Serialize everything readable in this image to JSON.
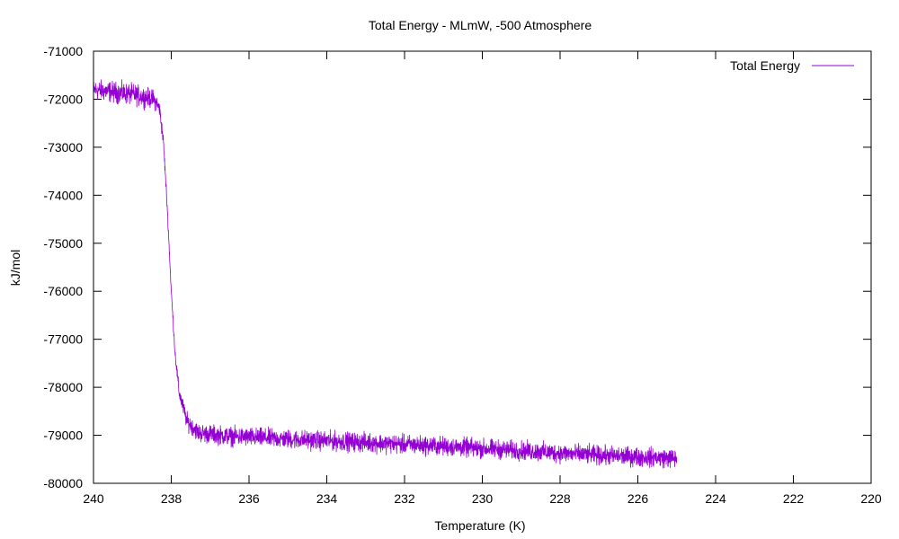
{
  "chart_data": {
    "type": "line",
    "title": "Total Energy - MLmW, -500 Atmosphere",
    "xlabel": "Temperature (K)",
    "ylabel": "kJ/mol",
    "xlim": [
      240,
      220
    ],
    "ylim": [
      -80000,
      -71000
    ],
    "x_reversed": true,
    "xticks": [
      "240",
      "238",
      "236",
      "234",
      "232",
      "230",
      "228",
      "226",
      "224",
      "222",
      "220"
    ],
    "yticks": [
      "-71000",
      "-72000",
      "-73000",
      "-74000",
      "-75000",
      "-76000",
      "-77000",
      "-78000",
      "-79000",
      "-80000"
    ],
    "grid": false,
    "legend_position": "top-right",
    "series": [
      {
        "name": "Total Energy",
        "color": "#9400d3",
        "band_profile": [
          {
            "x": 240.0,
            "mean": -71800,
            "spread": 300
          },
          {
            "x": 239.5,
            "mean": -71850,
            "spread": 320
          },
          {
            "x": 239.0,
            "mean": -71900,
            "spread": 320
          },
          {
            "x": 238.7,
            "mean": -71950,
            "spread": 300
          },
          {
            "x": 238.45,
            "mean": -72000,
            "spread": 280
          },
          {
            "x": 238.3,
            "mean": -72200,
            "spread": 250
          },
          {
            "x": 238.2,
            "mean": -72900,
            "spread": 200
          },
          {
            "x": 238.1,
            "mean": -74300,
            "spread": 150
          },
          {
            "x": 238.0,
            "mean": -76000,
            "spread": 150
          },
          {
            "x": 237.9,
            "mean": -77300,
            "spread": 180
          },
          {
            "x": 237.8,
            "mean": -78100,
            "spread": 220
          },
          {
            "x": 237.6,
            "mean": -78700,
            "spread": 260
          },
          {
            "x": 237.3,
            "mean": -78950,
            "spread": 280
          },
          {
            "x": 236.5,
            "mean": -79020,
            "spread": 290
          },
          {
            "x": 235.0,
            "mean": -79080,
            "spread": 290
          },
          {
            "x": 233.0,
            "mean": -79150,
            "spread": 290
          },
          {
            "x": 231.0,
            "mean": -79230,
            "spread": 290
          },
          {
            "x": 229.0,
            "mean": -79320,
            "spread": 290
          },
          {
            "x": 227.0,
            "mean": -79420,
            "spread": 290
          },
          {
            "x": 225.0,
            "mean": -79480,
            "spread": 290
          }
        ]
      }
    ]
  }
}
